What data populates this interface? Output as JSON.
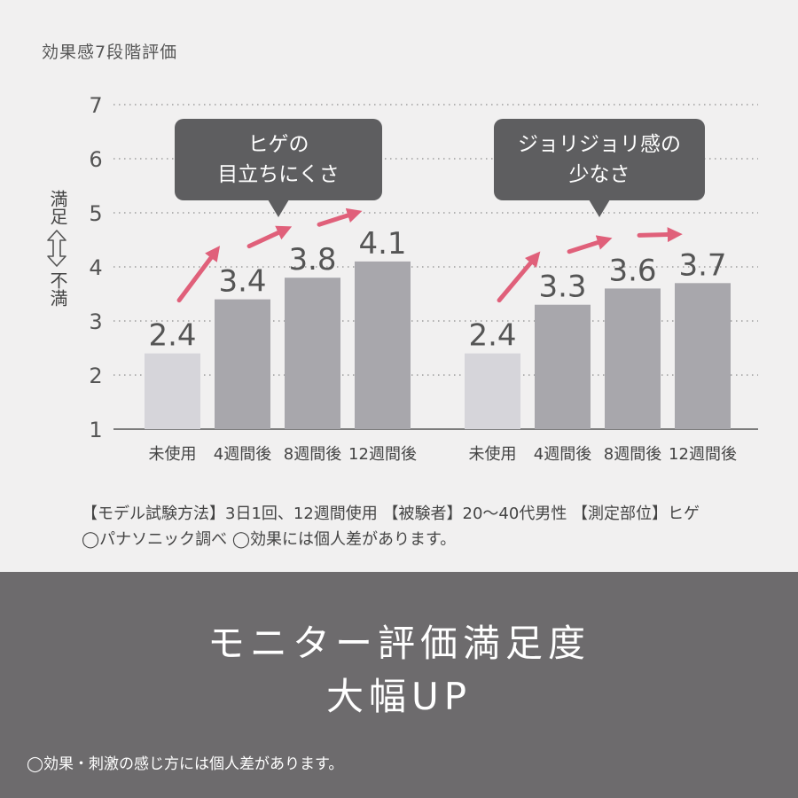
{
  "scale_title": "効果感7段階評価",
  "ylabel": {
    "top": "満足",
    "bottom": "不満"
  },
  "chart_data": {
    "type": "bar",
    "ylim": [
      1,
      7
    ],
    "yticks": [
      "1",
      "2",
      "3",
      "4",
      "5",
      "6",
      "7"
    ],
    "grid": true,
    "groups": [
      {
        "callout": "ヒゲの\n目立ちにくさ",
        "categories": [
          "未使用",
          "4週間後",
          "8週間後",
          "12週間後"
        ],
        "values": [
          2.4,
          3.4,
          3.8,
          4.1
        ],
        "labels": [
          "2.4",
          "3.4",
          "3.8",
          "4.1"
        ]
      },
      {
        "callout": "ジョリジョリ感の\n少なさ",
        "categories": [
          "未使用",
          "4週間後",
          "8週間後",
          "12週間後"
        ],
        "values": [
          2.4,
          3.3,
          3.6,
          3.7
        ],
        "labels": [
          "2.4",
          "3.3",
          "3.6",
          "3.7"
        ]
      }
    ],
    "colors": {
      "baseline_bar": "#d6d5da",
      "bar": "#a8a7ac",
      "arrow": "#e0607a",
      "grid": "#9e9e9e"
    }
  },
  "note": {
    "line1": "【モデル試験方法】3日1回、12週間使用 【被験者】20〜40代男性 【測定部位】ヒゲ",
    "line2": "◯パナソニック調べ ◯効果には個人差があります。"
  },
  "banner": {
    "line1": "モニター評価満足度",
    "line2": "大幅UP",
    "footnote": "◯効果・刺激の感じ方には個人差があります。"
  }
}
